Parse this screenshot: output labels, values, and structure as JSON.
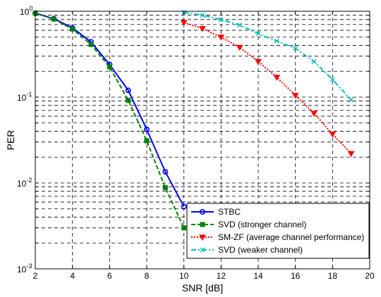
{
  "chart_data": {
    "type": "line",
    "xlabel": "SNR [dB]",
    "ylabel": "PER",
    "xlim": [
      2,
      20
    ],
    "ylim": [
      0.001,
      1
    ],
    "yscale": "log",
    "grid": true,
    "legend_position": "bottom-right",
    "x_ticks": [
      2,
      4,
      6,
      8,
      10,
      12,
      14,
      16,
      18,
      20
    ],
    "x_tick_labels": [
      "2",
      "4",
      "6",
      "8",
      "10",
      "12",
      "14",
      "16",
      "18",
      "20"
    ],
    "y_ticks": [
      {
        "value": 1,
        "base": "10",
        "exp": "0"
      },
      {
        "value": 0.1,
        "base": "10",
        "exp": "-1"
      },
      {
        "value": 0.01,
        "base": "10",
        "exp": "-2"
      },
      {
        "value": 0.001,
        "base": "10",
        "exp": "-3"
      }
    ],
    "series": [
      {
        "name": "STBC",
        "color": "#0000ff",
        "dash": "solid",
        "marker": "circle",
        "x": [
          2,
          3,
          4,
          5,
          6,
          7,
          8,
          9,
          10
        ],
        "y": [
          0.95,
          0.82,
          0.64,
          0.44,
          0.24,
          0.12,
          0.042,
          0.0135,
          0.0053
        ]
      },
      {
        "name": "SVD (stronger channel)",
        "color": "#008000",
        "dash": "dashed",
        "marker": "square",
        "x": [
          2,
          3,
          4,
          5,
          6,
          7,
          8,
          9,
          10
        ],
        "y": [
          0.95,
          0.81,
          0.62,
          0.41,
          0.225,
          0.092,
          0.031,
          0.0088,
          0.003
        ]
      },
      {
        "name": "SM-ZF (average channel performance)",
        "color": "#ff0000",
        "dash": "dotted",
        "marker": "triangle-down",
        "x": [
          10,
          11,
          12,
          13,
          14,
          15,
          16,
          17,
          18,
          19
        ],
        "y": [
          0.74,
          0.63,
          0.5,
          0.38,
          0.26,
          0.17,
          0.105,
          0.065,
          0.037,
          0.022
        ]
      },
      {
        "name": "SVD (weaker channel)",
        "color": "#00bfbf",
        "dash": "dashdot",
        "marker": "x",
        "x": [
          10,
          11,
          12,
          13,
          14,
          15,
          16,
          17,
          18,
          19
        ],
        "y": [
          0.97,
          0.9,
          0.8,
          0.69,
          0.55,
          0.45,
          0.37,
          0.26,
          0.16,
          0.093
        ]
      }
    ]
  }
}
